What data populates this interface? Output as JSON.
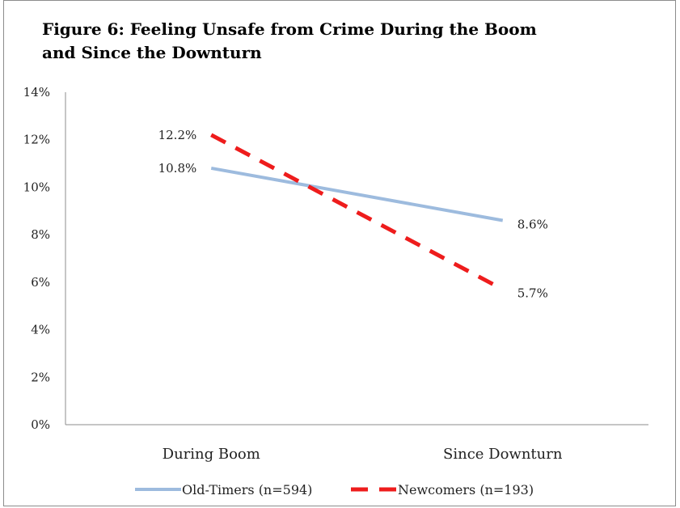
{
  "chart_data": {
    "type": "line",
    "title": "Figure 6: Feeling Unsafe from Crime During the Boom and Since the Downturn",
    "title_lines": [
      "Figure 6: Feeling Unsafe from Crime During the Boom",
      "and Since the Downturn"
    ],
    "categories": [
      "During Boom",
      "Since Downturn"
    ],
    "ylim": [
      0,
      14
    ],
    "yticks": [
      0,
      2,
      4,
      6,
      8,
      10,
      12,
      14
    ],
    "ytick_labels": [
      "0%",
      "2%",
      "4%",
      "6%",
      "8%",
      "10%",
      "12%",
      "14%"
    ],
    "grid": false,
    "legend_position": "bottom",
    "series": [
      {
        "name": "Old-Timers (n=594)",
        "values": [
          10.8,
          8.6
        ],
        "labels": [
          "10.8%",
          "8.6%"
        ],
        "color": "#9dbbde",
        "style": "solid"
      },
      {
        "name": "Newcomers (n=193)",
        "values": [
          12.2,
          5.7
        ],
        "labels": [
          "12.2%",
          "5.7%"
        ],
        "color": "#ee1c1c",
        "style": "dashed"
      }
    ]
  }
}
